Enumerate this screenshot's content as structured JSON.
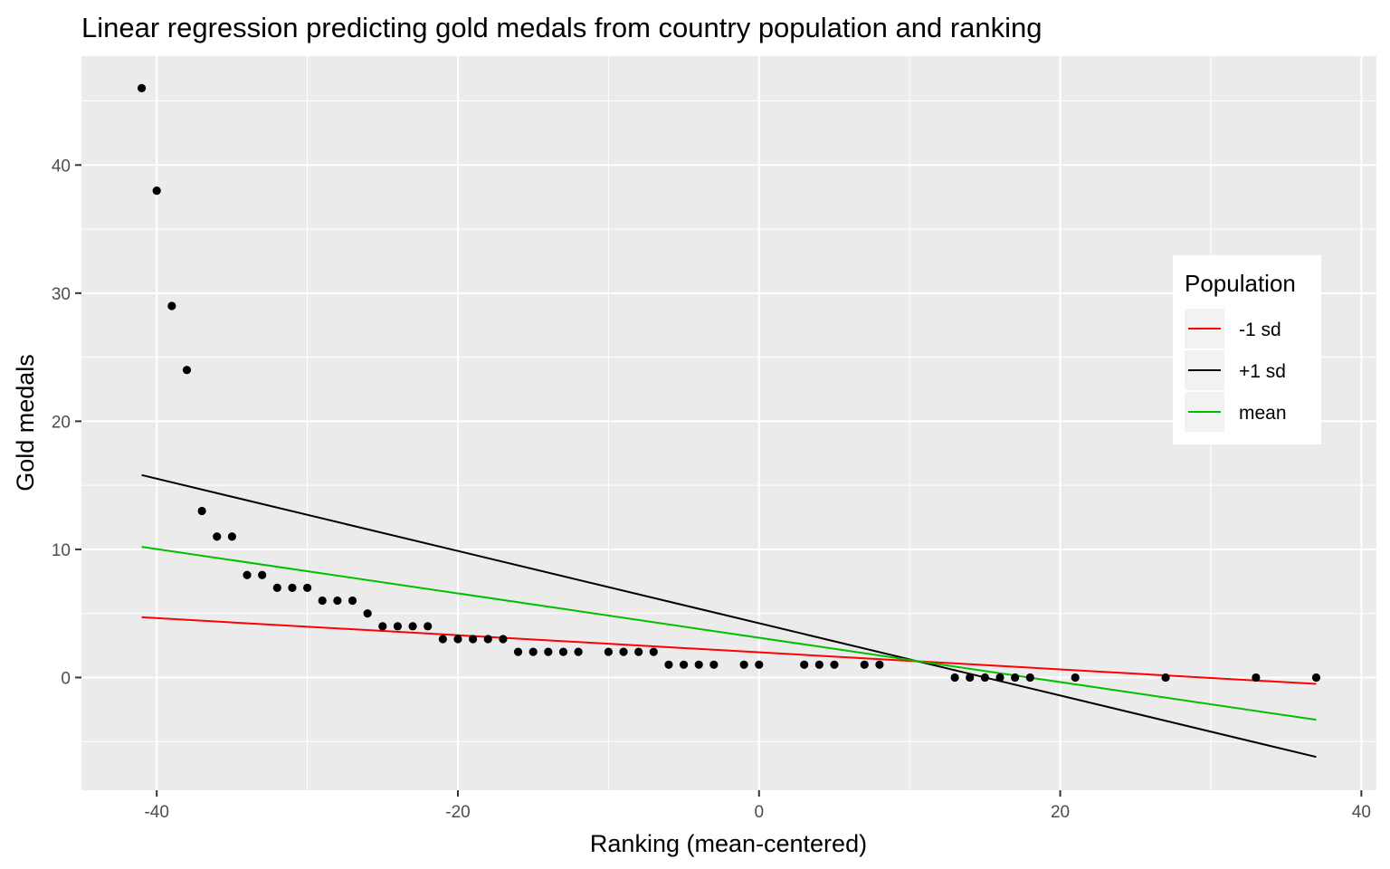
{
  "chart_data": {
    "type": "scatter",
    "title": "Linear regression predicting gold medals from country population and ranking",
    "xlabel": "Ranking (mean-centered)",
    "ylabel": "Gold medals",
    "xlim": [
      -45,
      41
    ],
    "ylim": [
      -8.8,
      48.5
    ],
    "x_ticks": [
      -40,
      -20,
      0,
      20,
      40
    ],
    "y_ticks": [
      0,
      10,
      20,
      30,
      40
    ],
    "x_tick_labels": [
      "-40",
      "-20",
      "0",
      "20",
      "40"
    ],
    "y_tick_labels": [
      "0",
      "10",
      "20",
      "30",
      "40"
    ],
    "grid": true,
    "points": [
      {
        "x": -41,
        "y": 46
      },
      {
        "x": -40,
        "y": 38
      },
      {
        "x": -39,
        "y": 29
      },
      {
        "x": -38,
        "y": 24
      },
      {
        "x": -37,
        "y": 13
      },
      {
        "x": -36,
        "y": 11
      },
      {
        "x": -35,
        "y": 11
      },
      {
        "x": -34,
        "y": 8
      },
      {
        "x": -33,
        "y": 8
      },
      {
        "x": -32,
        "y": 7
      },
      {
        "x": -31,
        "y": 7
      },
      {
        "x": -30,
        "y": 7
      },
      {
        "x": -29,
        "y": 6
      },
      {
        "x": -28,
        "y": 6
      },
      {
        "x": -27,
        "y": 6
      },
      {
        "x": -26,
        "y": 5
      },
      {
        "x": -25,
        "y": 4
      },
      {
        "x": -24,
        "y": 4
      },
      {
        "x": -23,
        "y": 4
      },
      {
        "x": -22,
        "y": 4
      },
      {
        "x": -21,
        "y": 3
      },
      {
        "x": -20,
        "y": 3
      },
      {
        "x": -19,
        "y": 3
      },
      {
        "x": -18,
        "y": 3
      },
      {
        "x": -17,
        "y": 3
      },
      {
        "x": -16,
        "y": 2
      },
      {
        "x": -15,
        "y": 2
      },
      {
        "x": -14,
        "y": 2
      },
      {
        "x": -13,
        "y": 2
      },
      {
        "x": -12,
        "y": 2
      },
      {
        "x": -10,
        "y": 2
      },
      {
        "x": -9,
        "y": 2
      },
      {
        "x": -8,
        "y": 2
      },
      {
        "x": -7,
        "y": 2
      },
      {
        "x": -6,
        "y": 1
      },
      {
        "x": -5,
        "y": 1
      },
      {
        "x": -4,
        "y": 1
      },
      {
        "x": -3,
        "y": 1
      },
      {
        "x": -1,
        "y": 1
      },
      {
        "x": 0,
        "y": 1
      },
      {
        "x": 3,
        "y": 1
      },
      {
        "x": 4,
        "y": 1
      },
      {
        "x": 5,
        "y": 1
      },
      {
        "x": 7,
        "y": 1
      },
      {
        "x": 8,
        "y": 1
      },
      {
        "x": 13,
        "y": 0
      },
      {
        "x": 14,
        "y": 0
      },
      {
        "x": 15,
        "y": 0
      },
      {
        "x": 16,
        "y": 0
      },
      {
        "x": 17,
        "y": 0
      },
      {
        "x": 18,
        "y": 0
      },
      {
        "x": 21,
        "y": 0
      },
      {
        "x": 27,
        "y": 0
      },
      {
        "x": 33,
        "y": 0
      },
      {
        "x": 37,
        "y": 0
      }
    ],
    "lines": [
      {
        "name": "-1 sd",
        "color": "#ff0000",
        "x": [
          -41,
          37
        ],
        "y": [
          4.7,
          -0.5
        ]
      },
      {
        "name": "+1 sd",
        "color": "#000000",
        "x": [
          -41,
          37
        ],
        "y": [
          15.8,
          -6.2
        ]
      },
      {
        "name": "mean",
        "color": "#00bf00",
        "x": [
          -41,
          37
        ],
        "y": [
          10.2,
          -3.3
        ]
      }
    ],
    "legend": {
      "title": "Population",
      "position": "right",
      "entries": [
        "-1 sd",
        "+1 sd",
        "mean"
      ]
    }
  },
  "colors": {
    "panel_background": "#ebebeb",
    "grid_major": "#ffffff",
    "point": "#000000"
  }
}
